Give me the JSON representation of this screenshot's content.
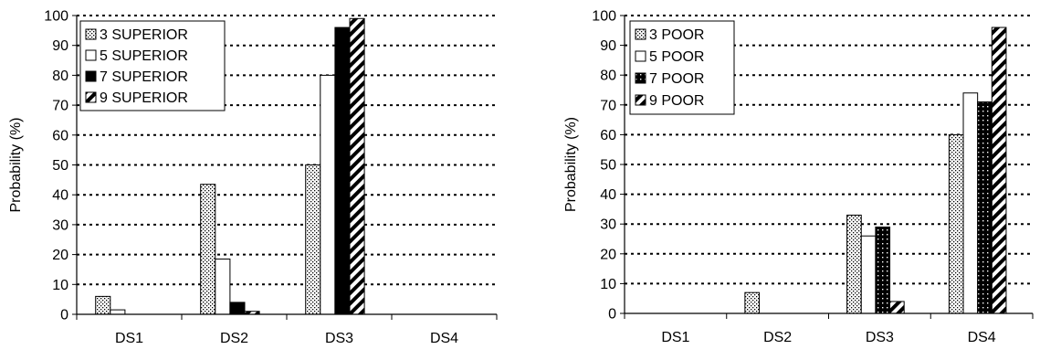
{
  "chart_data": [
    {
      "type": "bar",
      "title": "",
      "xlabel": "",
      "ylabel": "Probability (%)",
      "ylim": [
        0,
        100
      ],
      "yticks": [
        0,
        10,
        20,
        30,
        40,
        50,
        60,
        70,
        80,
        90,
        100
      ],
      "categories": [
        "DS1",
        "DS2",
        "DS3",
        "DS4"
      ],
      "grid": "horizontal-dotted",
      "legend_position": "top-left",
      "series": [
        {
          "name": "3 SUPERIOR",
          "pattern": "dots",
          "values": [
            6,
            43.5,
            50,
            0
          ]
        },
        {
          "name": "5 SUPERIOR",
          "pattern": "white",
          "values": [
            1.5,
            18.5,
            80,
            0
          ]
        },
        {
          "name": "7 SUPERIOR",
          "pattern": "black",
          "values": [
            0,
            4,
            96,
            0
          ]
        },
        {
          "name": "9 SUPERIOR",
          "pattern": "diagonal",
          "values": [
            0,
            1,
            99,
            0
          ]
        }
      ]
    },
    {
      "type": "bar",
      "title": "",
      "xlabel": "",
      "ylabel": "Probability (%)",
      "ylim": [
        0,
        100
      ],
      "yticks": [
        0,
        10,
        20,
        30,
        40,
        50,
        60,
        70,
        80,
        90,
        100
      ],
      "categories": [
        "DS1",
        "DS2",
        "DS3",
        "DS4"
      ],
      "grid": "horizontal-dotted",
      "legend_position": "top-left",
      "series": [
        {
          "name": "3 POOR",
          "pattern": "dots",
          "values": [
            0,
            7,
            33,
            60
          ]
        },
        {
          "name": "5 POOR",
          "pattern": "white",
          "values": [
            0,
            0,
            26,
            74
          ]
        },
        {
          "name": "7 POOR",
          "pattern": "black-dots",
          "values": [
            0,
            0,
            29,
            71
          ]
        },
        {
          "name": "9 POOR",
          "pattern": "diagonal",
          "values": [
            0,
            0,
            4,
            96
          ]
        }
      ]
    }
  ]
}
